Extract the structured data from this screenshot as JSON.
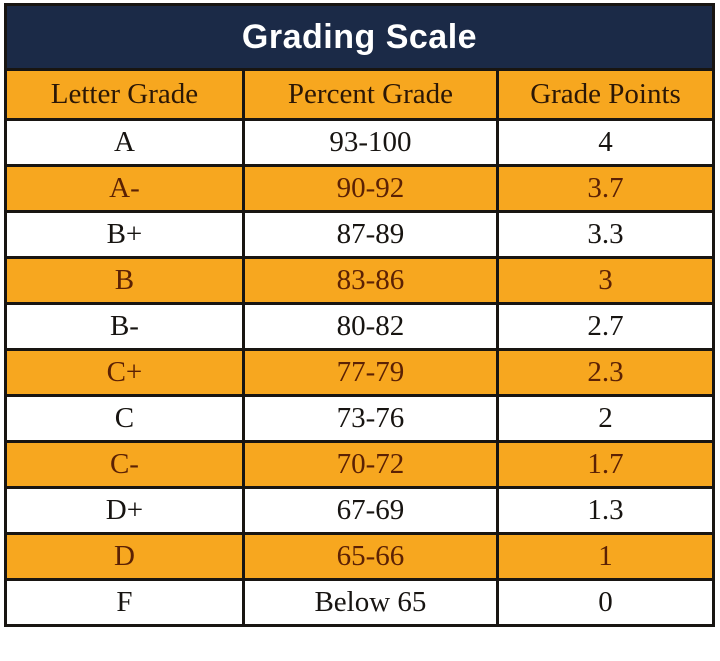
{
  "chart_data": {
    "type": "table",
    "title": "Grading Scale",
    "columns": [
      "Letter Grade",
      "Percent Grade",
      "Grade Points"
    ],
    "rows": [
      [
        "A",
        "93-100",
        "4"
      ],
      [
        "A-",
        "90-92",
        "3.7"
      ],
      [
        "B+",
        "87-89",
        "3.3"
      ],
      [
        "B",
        "83-86",
        "3"
      ],
      [
        "B-",
        "80-82",
        "2.7"
      ],
      [
        "C+",
        "77-79",
        "2.3"
      ],
      [
        "C",
        "73-76",
        "2"
      ],
      [
        "C-",
        "70-72",
        "1.7"
      ],
      [
        "D+",
        "67-69",
        "1.3"
      ],
      [
        "D",
        "65-66",
        "1"
      ],
      [
        "F",
        "Below 65",
        "0"
      ]
    ],
    "layout_hints": {
      "row_striping": "alternating white and gold starting with white",
      "title_bar": "navy with white bold sans-serif text",
      "header_row": "gold with dark serif text",
      "grid": "on"
    }
  },
  "colors": {
    "navy_title_background": "#1b2a47",
    "gold_accent": "#f7a71f",
    "border_black": "#181512",
    "title_text_white": "#ffffff",
    "gold_row_text_brown": "#5b2104",
    "white_row_text_black": "#171411",
    "header_text_dark": "#2b1706"
  }
}
